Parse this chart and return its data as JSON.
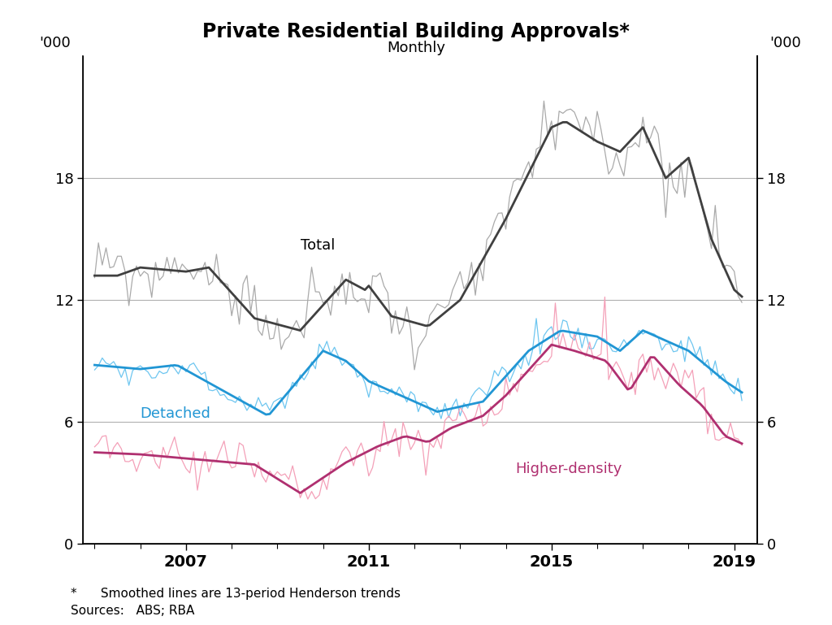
{
  "title": "Private Residential Building Approvals*",
  "subtitle": "Monthly",
  "ylabel_left": "'000",
  "ylabel_right": "'000",
  "footnote": "*      Smoothed lines are 13-period Henderson trends",
  "sources": "Sources:   ABS; RBA",
  "ylim": [
    0,
    24
  ],
  "yticks": [
    0,
    6,
    12,
    18
  ],
  "xlim_start": 2004.75,
  "xlim_end": 2019.5,
  "xticks": [
    2007,
    2011,
    2015,
    2019
  ],
  "background_color": "#ffffff",
  "grid_color": "#b0b0b0",
  "total_raw_color": "#aaaaaa",
  "total_smooth_color": "#404040",
  "detached_raw_color": "#6ec6f0",
  "detached_smooth_color": "#2196d4",
  "higher_raw_color": "#f4a0b8",
  "higher_smooth_color": "#b03070",
  "label_total": "Total",
  "label_detached": "Detached",
  "label_higher": "Higher-density"
}
